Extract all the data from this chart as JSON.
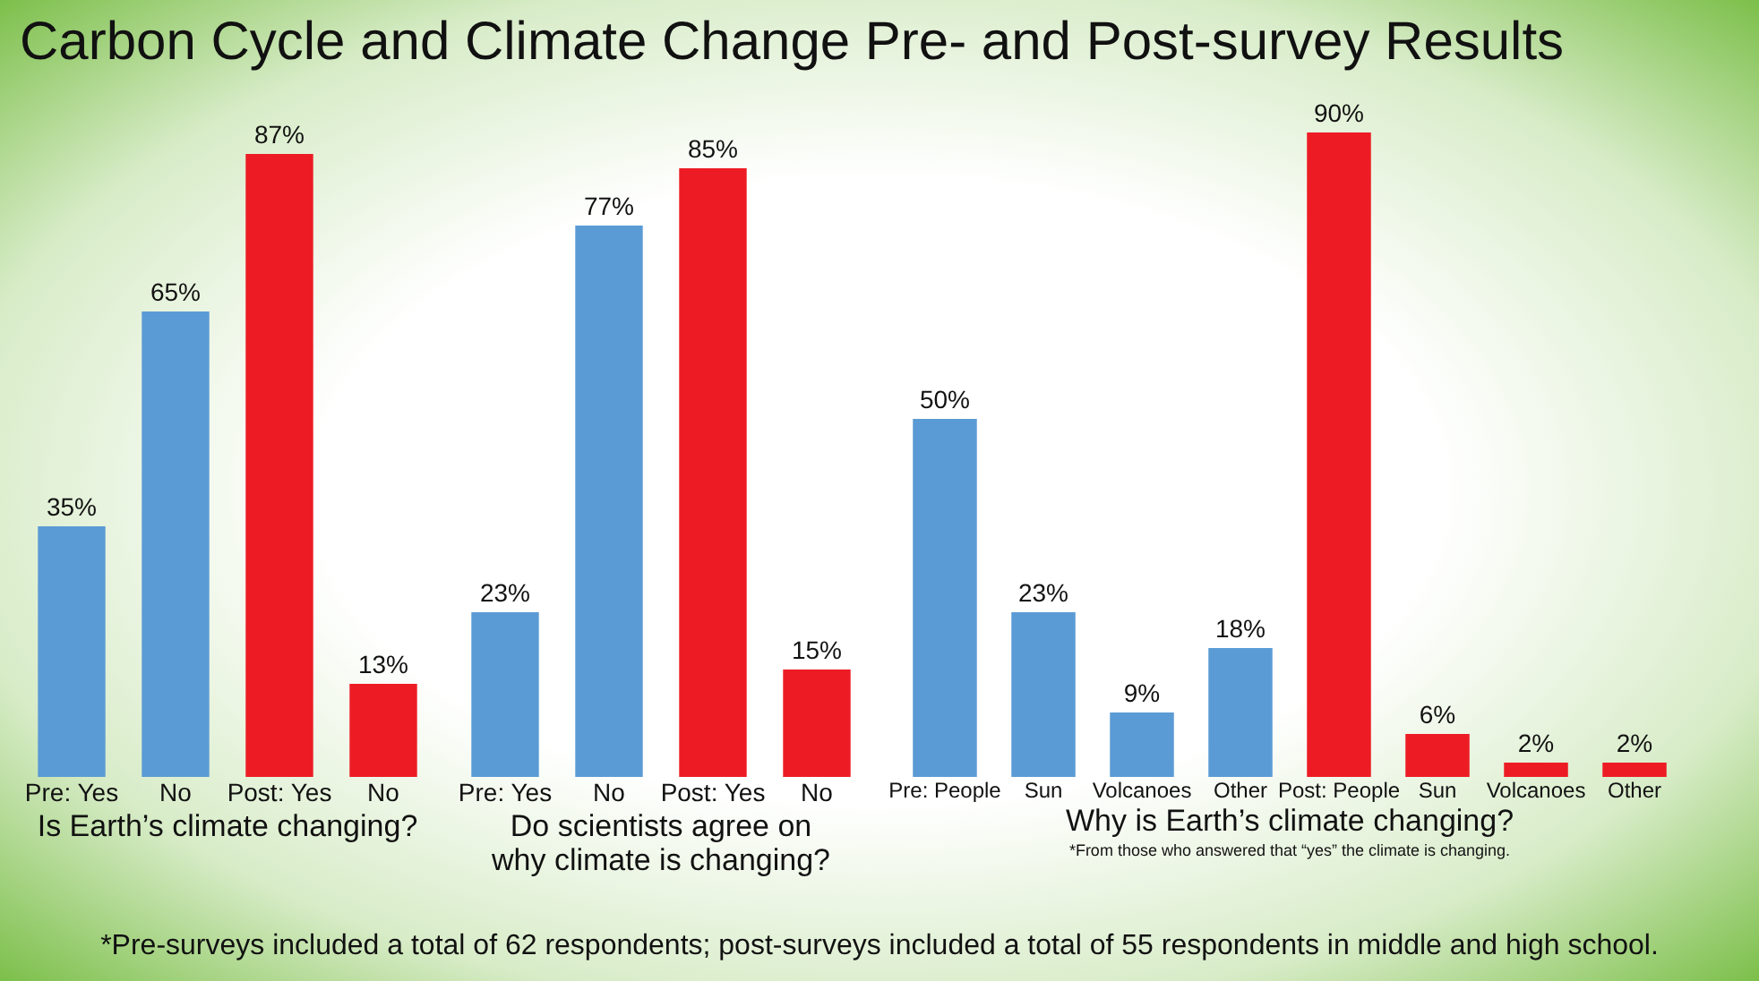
{
  "chart_data": [
    {
      "type": "bar",
      "title": "Carbon Cycle and Climate Change Pre- and Post-survey Results",
      "xlabel": "Is Earth’s climate changing?",
      "categories": [
        "Pre: Yes",
        "No",
        "Post: Yes",
        "No"
      ],
      "values": [
        35,
        65,
        87,
        13
      ],
      "colors": [
        "#5b9bd5",
        "#5b9bd5",
        "#ed1c24",
        "#ed1c24"
      ],
      "value_labels": [
        "35%",
        "65%",
        "87%",
        "13%"
      ],
      "annotations": [
        "*Pre-surveys included a total of 62 respondents; post-surveys included a total of 55 respondents in middle and high school."
      ]
    },
    {
      "type": "bar",
      "xlabel": "Do scientists agree on\nwhy climate is changing?",
      "categories": [
        "Pre: Yes",
        "No",
        "Post: Yes",
        "No"
      ],
      "values": [
        23,
        77,
        85,
        15
      ],
      "colors": [
        "#5b9bd5",
        "#5b9bd5",
        "#ed1c24",
        "#ed1c24"
      ],
      "value_labels": [
        "23%",
        "77%",
        "85%",
        "15%"
      ]
    },
    {
      "type": "bar",
      "xlabel": "Why is Earth’s climate changing?",
      "categories": [
        "Pre: People",
        "Sun",
        "Volcanoes",
        "Other",
        "Post: People",
        "Sun",
        "Volcanoes",
        "Other"
      ],
      "values": [
        50,
        23,
        9,
        18,
        90,
        6,
        2,
        2
      ],
      "colors": [
        "#5b9bd5",
        "#5b9bd5",
        "#5b9bd5",
        "#5b9bd5",
        "#ed1c24",
        "#ed1c24",
        "#ed1c24",
        "#ed1c24"
      ],
      "value_labels": [
        "50%",
        "23%",
        "9%",
        "18%",
        "90%",
        "6%",
        "2%",
        "2%"
      ],
      "annotations": [
        "*From those who answered that “yes” the climate is changing."
      ]
    }
  ]
}
